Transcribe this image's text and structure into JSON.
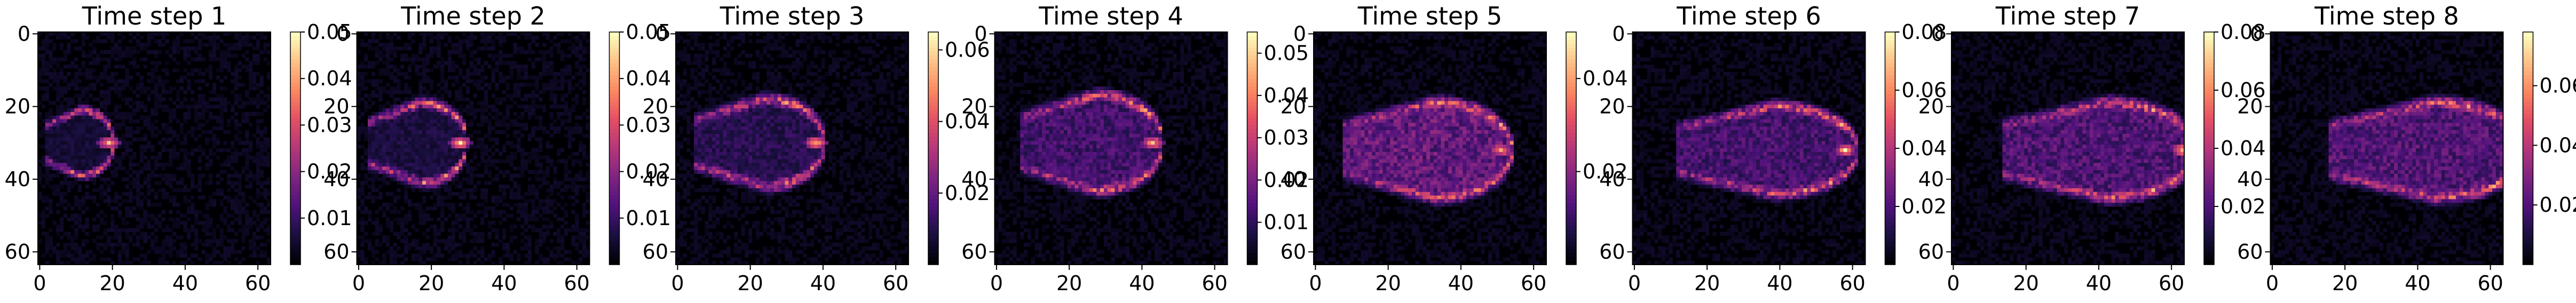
{
  "colormap": "magma",
  "panel_colors": {
    "frame": "#000000",
    "background": "#000004",
    "colormap_high": "#fcfdbf"
  },
  "chart_data": [
    {
      "type": "heatmap",
      "title": "Time step 1",
      "grid_shape": [
        64,
        64
      ],
      "x_ticks": [
        0,
        20,
        40,
        60
      ],
      "y_ticks": [
        0,
        20,
        40,
        60
      ],
      "xlim": [
        -0.5,
        63.5
      ],
      "ylim": [
        63.5,
        -0.5
      ],
      "vmin": 0.0,
      "vmax": 0.05,
      "colorbar_ticks": [
        "0.01",
        "0.02",
        "0.03",
        "0.04",
        "0.05"
      ],
      "front": {
        "x_center": 2,
        "x_tip": 19,
        "y_center": 30,
        "half_width": 9,
        "inner_max": 0.005
      },
      "grid": false
    },
    {
      "type": "heatmap",
      "title": "Time step 2",
      "grid_shape": [
        64,
        64
      ],
      "x_ticks": [
        0,
        20,
        40,
        60
      ],
      "y_ticks": [
        0,
        20,
        40,
        60
      ],
      "xlim": [
        -0.5,
        63.5
      ],
      "ylim": [
        63.5,
        -0.5
      ],
      "vmin": 0.0,
      "vmax": 0.05,
      "colorbar_ticks": [
        "0.01",
        "0.02",
        "0.03",
        "0.04",
        "0.05"
      ],
      "front": {
        "x_center": 4,
        "x_tip": 28,
        "y_center": 30,
        "half_width": 11,
        "inner_max": 0.006
      },
      "grid": false
    },
    {
      "type": "heatmap",
      "title": "Time step 3",
      "grid_shape": [
        64,
        64
      ],
      "x_ticks": [
        0,
        20,
        40,
        60
      ],
      "y_ticks": [
        0,
        20,
        40,
        60
      ],
      "xlim": [
        -0.5,
        63.5
      ],
      "ylim": [
        63.5,
        -0.5
      ],
      "vmin": 0.0,
      "vmax": 0.065,
      "colorbar_ticks": [
        "0.02",
        "0.04",
        "0.06"
      ],
      "front": {
        "x_center": 6,
        "x_tip": 38,
        "y_center": 30,
        "half_width": 12,
        "inner_max": 0.01
      },
      "grid": false
    },
    {
      "type": "heatmap",
      "title": "Time step 4",
      "grid_shape": [
        64,
        64
      ],
      "x_ticks": [
        0,
        20,
        40,
        60
      ],
      "y_ticks": [
        0,
        20,
        40,
        60
      ],
      "xlim": [
        -0.5,
        63.5
      ],
      "ylim": [
        63.5,
        -0.5
      ],
      "vmin": 0.0,
      "vmax": 0.055,
      "colorbar_ticks": [
        "0.01",
        "0.02",
        "0.03",
        "0.04",
        "0.05"
      ],
      "front": {
        "x_center": 8,
        "x_tip": 43,
        "y_center": 30,
        "half_width": 13,
        "inner_max": 0.012
      },
      "grid": false
    },
    {
      "type": "heatmap",
      "title": "Time step 5",
      "grid_shape": [
        64,
        64
      ],
      "x_ticks": [
        0,
        20,
        40,
        60
      ],
      "y_ticks": [
        0,
        20,
        40,
        60
      ],
      "xlim": [
        -0.5,
        63.5
      ],
      "ylim": [
        63.5,
        -0.5
      ],
      "vmin": 0.0,
      "vmax": 0.05,
      "colorbar_ticks": [
        "0.02",
        "0.04"
      ],
      "front": {
        "x_center": 10,
        "x_tip": 51,
        "y_center": 32,
        "half_width": 13,
        "inner_max": 0.015
      },
      "grid": false
    },
    {
      "type": "heatmap",
      "title": "Time step 6",
      "grid_shape": [
        64,
        64
      ],
      "x_ticks": [
        0,
        20,
        40,
        60
      ],
      "y_ticks": [
        0,
        20,
        40,
        60
      ],
      "xlim": [
        -0.5,
        63.5
      ],
      "ylim": [
        63.5,
        -0.5
      ],
      "vmin": 0.0,
      "vmax": 0.08,
      "colorbar_ticks": [
        "0.02",
        "0.04",
        "0.06",
        "0.08"
      ],
      "front": {
        "x_center": 14,
        "x_tip": 58,
        "y_center": 32,
        "half_width": 12,
        "inner_max": 0.018
      },
      "grid": false
    },
    {
      "type": "heatmap",
      "title": "Time step 7",
      "grid_shape": [
        64,
        64
      ],
      "x_ticks": [
        0,
        20,
        40,
        60
      ],
      "y_ticks": [
        0,
        20,
        40,
        60
      ],
      "xlim": [
        -0.5,
        63.5
      ],
      "ylim": [
        63.5,
        -0.5
      ],
      "vmin": 0.0,
      "vmax": 0.08,
      "colorbar_ticks": [
        "0.02",
        "0.04",
        "0.06",
        "0.08"
      ],
      "front": {
        "x_center": 16,
        "x_tip": 63,
        "y_center": 32,
        "half_width": 13,
        "inner_max": 0.02
      },
      "grid": false
    },
    {
      "type": "heatmap",
      "title": "Time step 8",
      "grid_shape": [
        64,
        64
      ],
      "x_ticks": [
        0,
        20,
        40,
        60
      ],
      "y_ticks": [
        0,
        20,
        40,
        60
      ],
      "xlim": [
        -0.5,
        63.5
      ],
      "ylim": [
        63.5,
        -0.5
      ],
      "vmin": 0.0,
      "vmax": 0.078,
      "colorbar_ticks": [
        "0.02",
        "0.04",
        "0.06"
      ],
      "front": {
        "x_center": 18,
        "x_tip": 66,
        "y_center": 32,
        "half_width": 13,
        "inner_max": 0.02
      },
      "grid": false
    }
  ]
}
